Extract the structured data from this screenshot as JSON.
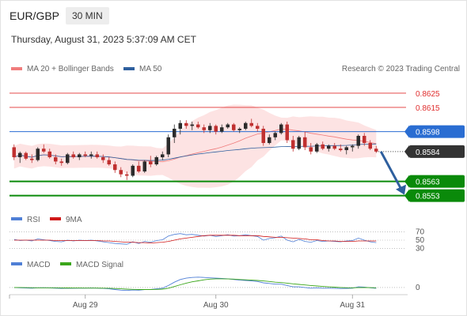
{
  "header": {
    "symbol": "EUR/GBP",
    "timeframe": "30 MIN",
    "timestamp": "Thursday, August 31, 2023 5:37:09 AM CET"
  },
  "colors": {
    "bollinger": "#f07c7c",
    "bollinger_fill": "#fde3e3",
    "ma50": "#2e5f9e",
    "resistance": "#e03030",
    "support": "#0a8a0a",
    "pivot": "#2a6dd2",
    "current": "#333333",
    "arrow": "#2e5f9e",
    "candle_up": "#2b2b2b",
    "candle_down": "#c03030",
    "rsi": "#4f7fd6",
    "rsi_ma": "#d01818",
    "macd": "#4f7fd6",
    "macd_signal": "#3aa61a"
  },
  "chart_data": [
    {
      "type": "candlestick",
      "panel": "price",
      "legend": [
        {
          "label": "MA 20 + Bollinger Bands",
          "color_key": "bollinger"
        },
        {
          "label": "MA 50",
          "color_key": "ma50"
        }
      ],
      "source": "Research © 2023 Trading Central",
      "x_labels": [
        "Aug 29",
        "Aug 30",
        "Aug 31"
      ],
      "ylim": [
        0.85445,
        0.86355
      ],
      "levels": [
        {
          "value": "0.8625",
          "kind": "resistance"
        },
        {
          "value": "0.8615",
          "kind": "resistance"
        },
        {
          "value": "0.8598",
          "kind": "pivot"
        },
        {
          "value": "0.8584",
          "kind": "current"
        },
        {
          "value": "0.8563",
          "kind": "support"
        },
        {
          "value": "0.8553",
          "kind": "support"
        }
      ],
      "forecast": {
        "from": 0.8584,
        "to": 0.8553
      },
      "ohlc": [
        [
          0.8587,
          0.8589,
          0.8578,
          0.858
        ],
        [
          0.858,
          0.8584,
          0.8576,
          0.8583
        ],
        [
          0.8583,
          0.8584,
          0.8578,
          0.8579
        ],
        [
          0.8579,
          0.8582,
          0.8576,
          0.8578
        ],
        [
          0.8578,
          0.8587,
          0.8577,
          0.8586
        ],
        [
          0.8586,
          0.8589,
          0.8583,
          0.8584
        ],
        [
          0.8584,
          0.8586,
          0.8579,
          0.858
        ],
        [
          0.858,
          0.8582,
          0.8575,
          0.8577
        ],
        [
          0.8577,
          0.8579,
          0.8574,
          0.8576
        ],
        [
          0.8576,
          0.8583,
          0.8575,
          0.8582
        ],
        [
          0.8582,
          0.8584,
          0.8579,
          0.858
        ],
        [
          0.858,
          0.8583,
          0.8578,
          0.8582
        ],
        [
          0.8582,
          0.8584,
          0.858,
          0.8581
        ],
        [
          0.8581,
          0.8584,
          0.8579,
          0.8582
        ],
        [
          0.8582,
          0.8584,
          0.8579,
          0.858
        ],
        [
          0.858,
          0.8582,
          0.8576,
          0.8578
        ],
        [
          0.8578,
          0.858,
          0.8574,
          0.8575
        ],
        [
          0.8575,
          0.8577,
          0.8569,
          0.8571
        ],
        [
          0.8571,
          0.8573,
          0.8566,
          0.8568
        ],
        [
          0.8568,
          0.857,
          0.8564,
          0.8567
        ],
        [
          0.8567,
          0.8575,
          0.8566,
          0.8574
        ],
        [
          0.8574,
          0.8577,
          0.8569,
          0.857
        ],
        [
          0.857,
          0.8578,
          0.8569,
          0.8577
        ],
        [
          0.8577,
          0.8581,
          0.8573,
          0.8575
        ],
        [
          0.8575,
          0.8581,
          0.8574,
          0.858
        ],
        [
          0.858,
          0.8584,
          0.8578,
          0.8582
        ],
        [
          0.8582,
          0.8596,
          0.858,
          0.8594
        ],
        [
          0.8594,
          0.8603,
          0.859,
          0.86
        ],
        [
          0.86,
          0.8606,
          0.8596,
          0.8604
        ],
        [
          0.8604,
          0.8606,
          0.86,
          0.8602
        ],
        [
          0.8602,
          0.8605,
          0.8599,
          0.8603
        ],
        [
          0.8603,
          0.8605,
          0.86,
          0.8601
        ],
        [
          0.8601,
          0.8603,
          0.8597,
          0.8599
        ],
        [
          0.8599,
          0.8604,
          0.8597,
          0.8602
        ],
        [
          0.8602,
          0.8603,
          0.8596,
          0.8598
        ],
        [
          0.8598,
          0.8603,
          0.8597,
          0.8601
        ],
        [
          0.8601,
          0.8604,
          0.86,
          0.8603
        ],
        [
          0.8603,
          0.8604,
          0.8598,
          0.8599
        ],
        [
          0.8599,
          0.8601,
          0.8597,
          0.86
        ],
        [
          0.86,
          0.8605,
          0.8599,
          0.8604
        ],
        [
          0.8604,
          0.8607,
          0.8601,
          0.8602
        ],
        [
          0.8602,
          0.8604,
          0.8598,
          0.86
        ],
        [
          0.86,
          0.8602,
          0.8588,
          0.859
        ],
        [
          0.859,
          0.8596,
          0.8589,
          0.8594
        ],
        [
          0.8594,
          0.8598,
          0.8592,
          0.8597
        ],
        [
          0.8597,
          0.8604,
          0.8596,
          0.8603
        ],
        [
          0.8603,
          0.8605,
          0.859,
          0.8592
        ],
        [
          0.8592,
          0.8595,
          0.8584,
          0.8586
        ],
        [
          0.8586,
          0.8595,
          0.8585,
          0.8594
        ],
        [
          0.8594,
          0.8598,
          0.8585,
          0.8587
        ],
        [
          0.8587,
          0.859,
          0.8582,
          0.8584
        ],
        [
          0.8584,
          0.859,
          0.8583,
          0.8589
        ],
        [
          0.8589,
          0.8591,
          0.8585,
          0.8586
        ],
        [
          0.8586,
          0.8589,
          0.8584,
          0.8588
        ],
        [
          0.8588,
          0.859,
          0.8585,
          0.8586
        ],
        [
          0.8586,
          0.8589,
          0.8584,
          0.8585
        ],
        [
          0.8585,
          0.8588,
          0.8582,
          0.8587
        ],
        [
          0.8587,
          0.8589,
          0.8584,
          0.8588
        ],
        [
          0.8588,
          0.8596,
          0.8586,
          0.8595
        ],
        [
          0.8595,
          0.8597,
          0.8588,
          0.859
        ],
        [
          0.859,
          0.8592,
          0.8585,
          0.8586
        ],
        [
          0.8586,
          0.8588,
          0.8583,
          0.8584
        ]
      ]
    },
    {
      "type": "line",
      "panel": "rsi",
      "legend": [
        {
          "label": "RSI",
          "color_key": "rsi"
        },
        {
          "label": "9MA",
          "color_key": "rsi_ma"
        }
      ],
      "y_ticks": [
        "70",
        "50",
        "30"
      ],
      "ylim": [
        25,
        75
      ],
      "series": [
        {
          "name": "RSI",
          "values": [
            52,
            49,
            50,
            48,
            53,
            51,
            49,
            47,
            46,
            50,
            48,
            50,
            49,
            50,
            48,
            46,
            44,
            42,
            41,
            40,
            46,
            42,
            47,
            45,
            49,
            51,
            60,
            64,
            66,
            63,
            64,
            62,
            60,
            62,
            59,
            61,
            63,
            60,
            61,
            63,
            61,
            59,
            50,
            54,
            56,
            60,
            50,
            46,
            52,
            47,
            45,
            49,
            47,
            48,
            47,
            46,
            48,
            49,
            55,
            50,
            46,
            44
          ]
        },
        {
          "name": "9MA",
          "values": [
            50,
            50,
            50,
            50,
            50,
            50,
            50,
            49,
            49,
            49,
            49,
            49,
            49,
            49,
            49,
            48,
            48,
            47,
            46,
            45,
            45,
            44,
            44,
            43,
            44,
            45,
            47,
            50,
            53,
            55,
            57,
            59,
            61,
            62,
            62,
            62,
            62,
            62,
            61,
            61,
            61,
            61,
            59,
            58,
            57,
            57,
            56,
            55,
            54,
            53,
            51,
            51,
            49,
            48,
            48,
            47,
            47,
            47,
            48,
            48,
            48,
            48
          ]
        }
      ]
    },
    {
      "type": "line",
      "panel": "macd",
      "legend": [
        {
          "label": "MACD",
          "color_key": "macd"
        },
        {
          "label": "MACD Signal",
          "color_key": "macd_signal"
        }
      ],
      "y_ticks": [
        "0"
      ],
      "ylim": [
        -6,
        20
      ],
      "series": [
        {
          "name": "MACD",
          "values": [
            0,
            -0.5,
            -0.8,
            -1,
            -0.5,
            -0.3,
            -0.6,
            -1,
            -1.3,
            -1,
            -1.2,
            -1,
            -1,
            -0.8,
            -1,
            -1.4,
            -2,
            -3,
            -4,
            -4.5,
            -3.8,
            -4,
            -3.2,
            -3,
            -2,
            -1,
            3,
            8,
            12,
            14,
            15,
            15.5,
            15,
            14.5,
            14,
            13.5,
            13,
            12,
            11,
            10.5,
            10,
            9,
            7,
            6,
            5,
            5,
            3,
            1,
            1,
            0,
            -1,
            -0.5,
            -1,
            -1,
            -1.2,
            -1.5,
            -1.3,
            -1,
            1,
            0.5,
            -0.5,
            -1.2
          ]
        },
        {
          "name": "MACD Signal",
          "values": [
            0,
            0,
            -0.2,
            -0.3,
            -0.4,
            -0.4,
            -0.4,
            -0.5,
            -0.6,
            -0.7,
            -0.8,
            -0.8,
            -0.9,
            -0.9,
            -0.9,
            -1,
            -1.2,
            -1.5,
            -2,
            -2.5,
            -2.8,
            -3,
            -3.1,
            -3,
            -2.8,
            -2.5,
            -1,
            1.5,
            4,
            6.5,
            8.5,
            10,
            11.5,
            12.5,
            13,
            13,
            12.8,
            12.5,
            12,
            11.5,
            11,
            10.5,
            9.8,
            9,
            8,
            7.3,
            6.5,
            5.5,
            4.6,
            3.8,
            3,
            2.3,
            1.6,
            1,
            0.5,
            0,
            -0.3,
            -0.5,
            -0.2,
            0,
            -0.2,
            -0.5
          ]
        }
      ]
    }
  ]
}
